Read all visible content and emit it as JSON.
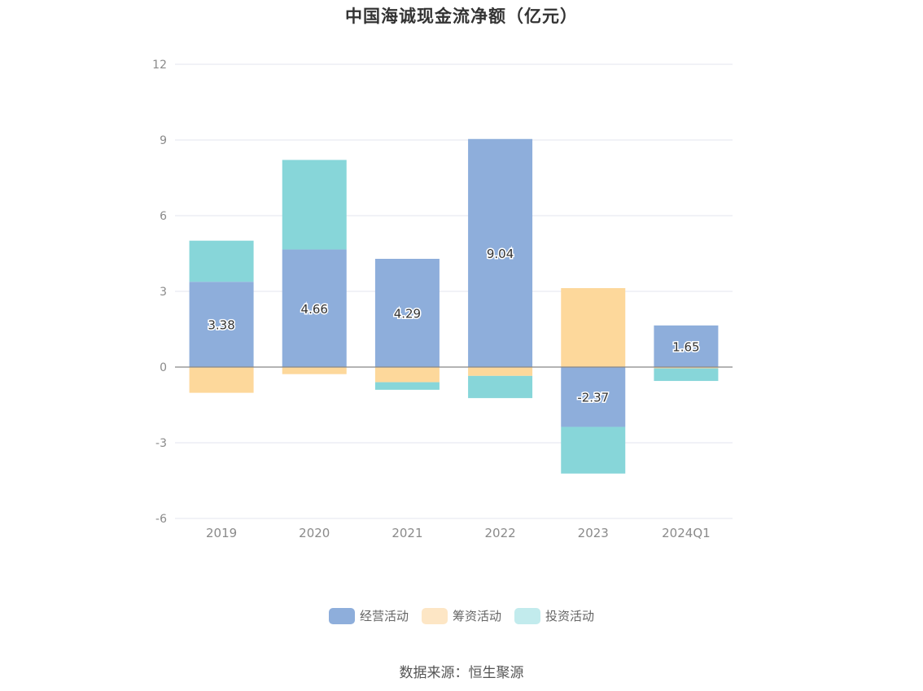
{
  "chart_data": {
    "type": "bar",
    "stacked": true,
    "title": "中国海诚现金流净额（亿元）",
    "categories": [
      "2019",
      "2020",
      "2021",
      "2022",
      "2023",
      "2024Q1"
    ],
    "series": [
      {
        "name": "经营活动",
        "color": "#8eaedb",
        "values": [
          3.38,
          4.66,
          4.29,
          9.04,
          -2.37,
          1.65
        ],
        "labeled": true
      },
      {
        "name": "筹资活动",
        "color": "#fdd89b",
        "values": [
          -1.02,
          -0.28,
          -0.6,
          -0.35,
          3.13,
          -0.05
        ],
        "labeled": false
      },
      {
        "name": "投资活动",
        "color": "#87d6d9",
        "values": [
          1.63,
          3.55,
          -0.3,
          -0.88,
          -1.85,
          -0.5
        ],
        "labeled": false
      }
    ],
    "yticks": [
      12,
      9,
      6,
      3,
      0,
      -3,
      -6
    ],
    "ylim": [
      -6,
      12
    ],
    "grid": true,
    "legend_position": "bottom"
  },
  "legend": {
    "items": [
      {
        "label": "经营活动",
        "color": "#8eaedb"
      },
      {
        "label": "筹资活动",
        "color": "#fde6c5"
      },
      {
        "label": "投资活动",
        "color": "#c2ebed"
      }
    ]
  },
  "source": "数据来源：恒生聚源"
}
